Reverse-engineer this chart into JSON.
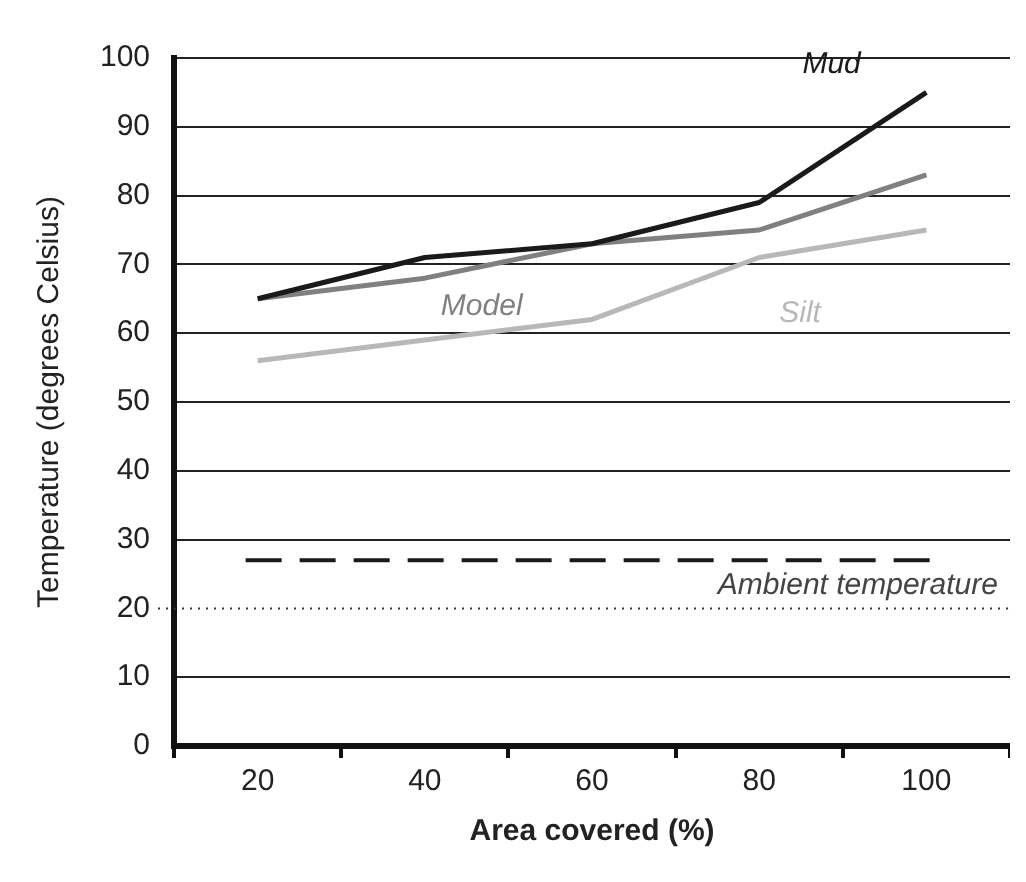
{
  "chart_data": {
    "type": "line",
    "xlabel": "Area covered (%)",
    "ylabel": "Temperature (degrees Celsius)",
    "categories": [
      "20",
      "40",
      "60",
      "80",
      "100"
    ],
    "series": [
      {
        "name": "Mud",
        "color": "#1a1a1a",
        "values": [
          65,
          71,
          73,
          79,
          95
        ]
      },
      {
        "name": "Model",
        "color": "#808080",
        "values": [
          65,
          68,
          73,
          75,
          83
        ]
      },
      {
        "name": "Silt",
        "color": "#b8b8b8",
        "values": [
          56,
          59,
          62,
          71,
          75
        ]
      }
    ],
    "ylim": [
      0,
      100
    ],
    "yticks": [
      0,
      10,
      20,
      30,
      40,
      50,
      60,
      70,
      80,
      90,
      100
    ],
    "grid": "y",
    "legend": false,
    "marker": "none",
    "line_style": "solid",
    "ref_lines": [
      {
        "axis": "y",
        "value": 27,
        "label": "Ambient temperature",
        "color": "#1a1a1a",
        "line_style": "dashed"
      },
      {
        "axis": "y",
        "value": 20,
        "label": null,
        "color": "#333333",
        "line_style": "dotted"
      }
    ]
  }
}
